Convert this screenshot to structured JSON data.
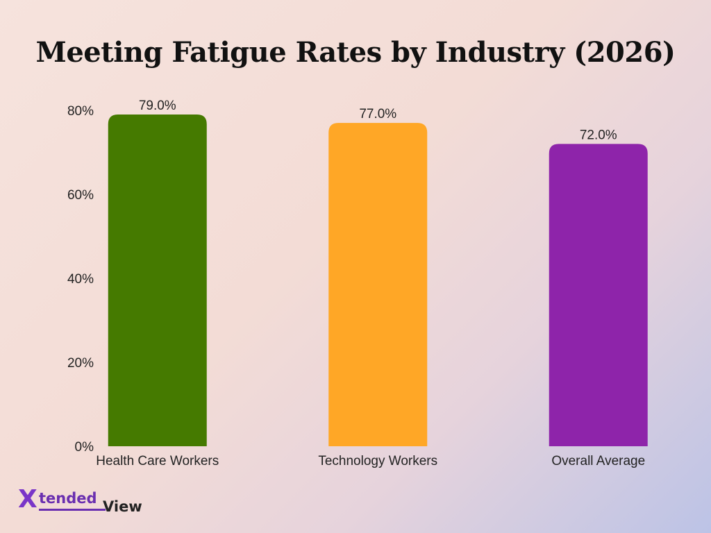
{
  "chart_data": {
    "type": "bar",
    "title": "Meeting Fatigue Rates by Industry (2026)",
    "categories": [
      "Health Care Workers",
      "Technology Workers",
      "Overall Average"
    ],
    "values": [
      79.0,
      77.0,
      72.0
    ],
    "data_labels": [
      "79.0%",
      "77.0%",
      "72.0%"
    ],
    "colors": [
      "#457a00",
      "#ffa726",
      "#8e24aa"
    ],
    "ylim": [
      0,
      80
    ],
    "yticks": [
      0,
      20,
      40,
      60,
      80
    ],
    "ytick_labels": [
      "0%",
      "20%",
      "40%",
      "60%",
      "80%"
    ],
    "xlabel": "",
    "ylabel": "",
    "grid": false
  },
  "brand": {
    "mark": "X",
    "name_part1": "tended",
    "name_part2": "View"
  }
}
